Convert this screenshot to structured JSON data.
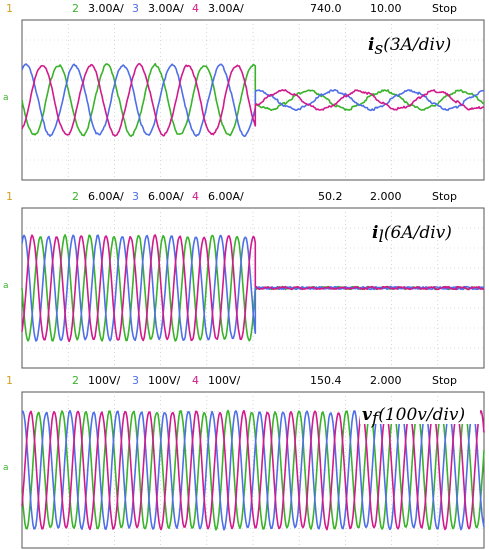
{
  "channel_colors": {
    "1": "#d4a020",
    "2": "#39b32a",
    "3": "#4f6fe8",
    "4": "#d11a8c"
  },
  "panels": [
    {
      "id": "is",
      "header": {
        "ch1": "1",
        "ch2_num": "2",
        "ch2_scale": "3.00A/",
        "ch3_num": "3",
        "ch3_scale": "3.00A/",
        "ch4_num": "4",
        "ch4_scale": "3.00A/",
        "trig_pos": "740.0",
        "timebase": "10.00",
        "state": "Stop"
      },
      "quantity": {
        "symbol": "i",
        "sub": "s",
        "scale": "(3A/div)"
      }
    },
    {
      "id": "il",
      "header": {
        "ch1": "1",
        "ch2_num": "2",
        "ch2_scale": "6.00A/",
        "ch3_num": "3",
        "ch3_scale": "6.00A/",
        "ch4_num": "4",
        "ch4_scale": "6.00A/",
        "trig_pos": "50.2",
        "timebase": "2.000",
        "state": "Stop"
      },
      "quantity": {
        "symbol": "i",
        "sub": "l",
        "scale": "(6A/div)"
      }
    },
    {
      "id": "vf",
      "header": {
        "ch1": "1",
        "ch2_num": "2",
        "ch2_scale": "100V/",
        "ch3_num": "3",
        "ch3_scale": "100V/",
        "ch4_num": "4",
        "ch4_scale": "100V/",
        "trig_pos": "150.4",
        "timebase": "2.000",
        "state": "Stop"
      },
      "quantity": {
        "symbol": "v",
        "sub": "f",
        "scale": "(100v/div)"
      }
    }
  ],
  "chart_data": [
    {
      "type": "line",
      "grid": true,
      "x_divisions": 10,
      "y_divisions": 8,
      "series": [
        {
          "name": "2",
          "color": "#39b32a",
          "segments": [
            {
              "x_range": [
                0,
                5.05
              ],
              "amplitude_div": 1.75,
              "cycles": 4.8,
              "phase_deg": 180
            },
            {
              "x_range": [
                5.05,
                10
              ],
              "amplitude_div": 0.45,
              "cycles": 3.0,
              "phase_deg": 200
            }
          ]
        },
        {
          "name": "3",
          "color": "#4f6fe8",
          "segments": [
            {
              "x_range": [
                0,
                5.05
              ],
              "amplitude_div": 1.75,
              "cycles": 4.8,
              "phase_deg": 60
            },
            {
              "x_range": [
                5.05,
                10
              ],
              "amplitude_div": 0.45,
              "cycles": 3.0,
              "phase_deg": 80
            }
          ]
        },
        {
          "name": "4",
          "color": "#d11a8c",
          "segments": [
            {
              "x_range": [
                0,
                5.05
              ],
              "amplitude_div": 1.75,
              "cycles": 4.8,
              "phase_deg": 300
            },
            {
              "x_range": [
                5.05,
                10
              ],
              "amplitude_div": 0.45,
              "cycles": 3.0,
              "phase_deg": 320
            }
          ]
        }
      ]
    },
    {
      "type": "line",
      "grid": true,
      "x_divisions": 10,
      "y_divisions": 8,
      "series": [
        {
          "name": "2",
          "color": "#39b32a",
          "segments": [
            {
              "x_range": [
                0,
                5.05
              ],
              "amplitude_div": 2.6,
              "cycles": 9.5,
              "phase_deg": 180
            },
            {
              "x_range": [
                5.05,
                10
              ],
              "amplitude_div": 0.0,
              "cycles": 0,
              "phase_deg": 0
            }
          ]
        },
        {
          "name": "3",
          "color": "#4f6fe8",
          "segments": [
            {
              "x_range": [
                0,
                5.05
              ],
              "amplitude_div": 2.6,
              "cycles": 9.5,
              "phase_deg": 60
            },
            {
              "x_range": [
                5.05,
                10
              ],
              "amplitude_div": 0.0,
              "cycles": 0,
              "phase_deg": 0
            }
          ]
        },
        {
          "name": "4",
          "color": "#d11a8c",
          "segments": [
            {
              "x_range": [
                0,
                5.05
              ],
              "amplitude_div": 2.6,
              "cycles": 9.5,
              "phase_deg": 300
            },
            {
              "x_range": [
                5.05,
                10
              ],
              "amplitude_div": 0.0,
              "cycles": 0,
              "phase_deg": 0
            }
          ]
        }
      ]
    },
    {
      "type": "line",
      "grid": true,
      "x_divisions": 10,
      "y_divisions": 8,
      "series": [
        {
          "name": "2",
          "color": "#39b32a",
          "segments": [
            {
              "x_range": [
                0,
                10
              ],
              "amplitude_div": 3.0,
              "cycles": 19.5,
              "phase_deg": 200
            }
          ]
        },
        {
          "name": "3",
          "color": "#4f6fe8",
          "segments": [
            {
              "x_range": [
                0,
                10
              ],
              "amplitude_div": 3.0,
              "cycles": 19.5,
              "phase_deg": 80
            }
          ]
        },
        {
          "name": "4",
          "color": "#d11a8c",
          "segments": [
            {
              "x_range": [
                0,
                10
              ],
              "amplitude_div": 3.0,
              "cycles": 19.5,
              "phase_deg": 320
            }
          ]
        }
      ]
    }
  ]
}
